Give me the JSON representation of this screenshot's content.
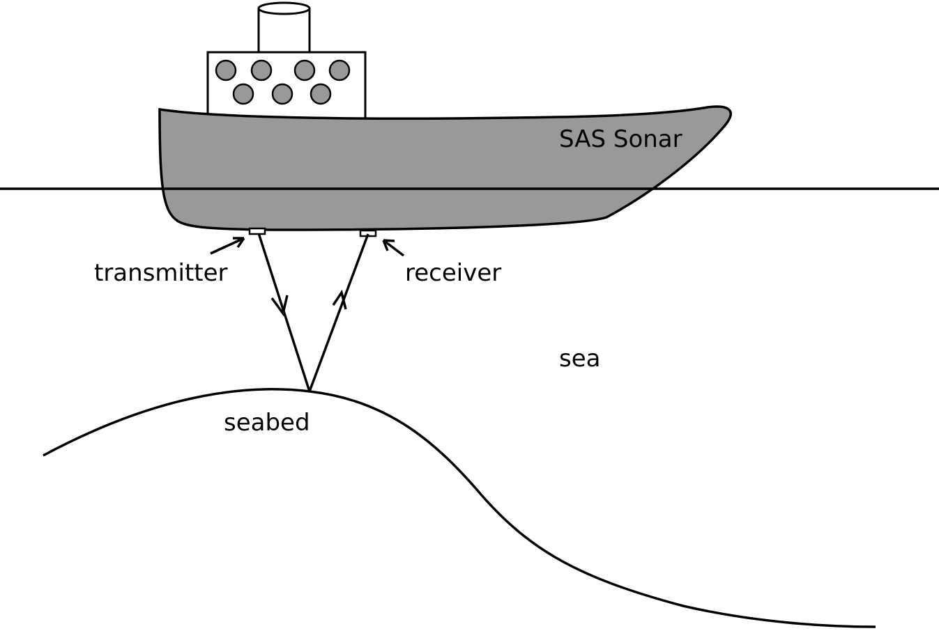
{
  "labels": {
    "ship": "SAS Sonar",
    "transmitter": "transmitter",
    "receiver": "receiver",
    "sea": "sea",
    "seabed": "seabed"
  },
  "colors": {
    "hull": "#999999",
    "porthole": "#999999",
    "line": "#000000",
    "background": "#ffffff"
  }
}
